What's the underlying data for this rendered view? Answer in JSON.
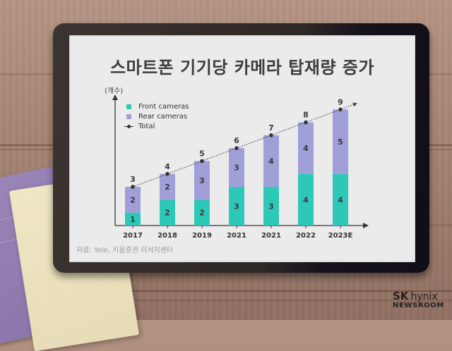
{
  "page": {
    "title": "스마트폰 기기당 카메라 탑재량 증가",
    "unit_label": "(개수)",
    "source": "자료: Yole, 키움증권 리서치센터",
    "brand": {
      "sk": "SK",
      "hynix": "hynix",
      "newsroom": "NEWSROOM"
    }
  },
  "legend": [
    {
      "label": "Front cameras",
      "color": "#2ec8b8",
      "kind": "swatch"
    },
    {
      "label": "Rear cameras",
      "color": "#a09fd8",
      "kind": "swatch"
    },
    {
      "label": "Total",
      "color": "#333333",
      "kind": "line-dot"
    }
  ],
  "chart_data": {
    "type": "bar",
    "stacked": true,
    "title": "스마트폰 기기당 카메라 탑재량 증가",
    "ylabel": "(개수)",
    "xlabel": "",
    "categories": [
      "2017",
      "2018",
      "2019",
      "2021",
      "2021",
      "2022",
      "2023E"
    ],
    "series": [
      {
        "name": "Front cameras",
        "color": "#2ec8b8",
        "values": [
          1,
          2,
          2,
          3,
          3,
          4,
          4
        ]
      },
      {
        "name": "Rear cameras",
        "color": "#a09fd8",
        "values": [
          2,
          2,
          3,
          3,
          4,
          4,
          5
        ]
      },
      {
        "name": "Total",
        "type": "line",
        "style": "dotted",
        "values": [
          3,
          4,
          5,
          6,
          7,
          8,
          9
        ]
      }
    ],
    "ylim": [
      0,
      10
    ],
    "grid": false,
    "legend_position": "top-left",
    "source": "자료: Yole, 키움증권 리서치센터"
  }
}
